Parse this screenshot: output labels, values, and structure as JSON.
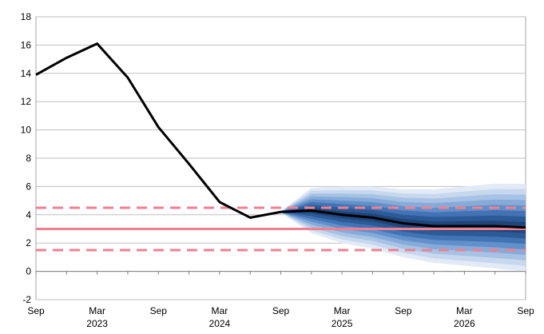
{
  "chart_data": {
    "type": "line",
    "title": "",
    "xlabel": "",
    "ylabel": "",
    "ylim": [
      -2,
      18
    ],
    "yticks": [
      -2,
      0,
      2,
      4,
      6,
      8,
      10,
      12,
      14,
      16,
      18
    ],
    "grid": "horizontal",
    "legend": "none",
    "x_tick_labels": [
      {
        "month": 0,
        "label": "Sep",
        "year": ""
      },
      {
        "month": 6,
        "label": "Mar",
        "year": "2023"
      },
      {
        "month": 12,
        "label": "Sep",
        "year": ""
      },
      {
        "month": 18,
        "label": "Mar",
        "year": "2024"
      },
      {
        "month": 24,
        "label": "Sep",
        "year": ""
      },
      {
        "month": 30,
        "label": "Mar",
        "year": "2025"
      },
      {
        "month": 36,
        "label": "Sep",
        "year": ""
      },
      {
        "month": 42,
        "label": "Mar",
        "year": "2026"
      },
      {
        "month": 48,
        "label": "Sep",
        "year": ""
      }
    ],
    "x_range_months": [
      0,
      48
    ],
    "series": [
      {
        "color": "#000000",
        "x_months": [
          0,
          3,
          6,
          9,
          12,
          15,
          18,
          21,
          24,
          27,
          30,
          33,
          36,
          39,
          42,
          45,
          48
        ],
        "values": [
          13.9,
          15.1,
          16.1,
          13.7,
          10.2,
          7.6,
          4.9,
          3.8,
          4.2,
          4.3,
          4.0,
          3.8,
          3.4,
          3.2,
          3.2,
          3.2,
          3.1
        ]
      }
    ],
    "fan": {
      "x_months": [
        24,
        27,
        30,
        33,
        36,
        39,
        42,
        45,
        48
      ],
      "center": [
        4.2,
        4.3,
        4.0,
        3.8,
        3.4,
        3.2,
        3.2,
        3.2,
        3.1
      ],
      "half_widths": [
        0.05,
        1.6,
        2.0,
        2.2,
        2.4,
        2.6,
        2.8,
        3.0,
        3.1
      ],
      "colors": [
        "#e1eaf6",
        "#c7d8ee",
        "#a6c2e4",
        "#86abd9",
        "#6190cb",
        "#4273b4",
        "#2c5a97",
        "#1f4579"
      ]
    },
    "reference_lines": [
      {
        "y": 3.0,
        "style": "solid",
        "color": "#f08090"
      },
      {
        "y": 4.5,
        "style": "dashed",
        "color": "#f08090"
      },
      {
        "y": 1.5,
        "style": "dashed",
        "color": "#f08090"
      }
    ]
  }
}
